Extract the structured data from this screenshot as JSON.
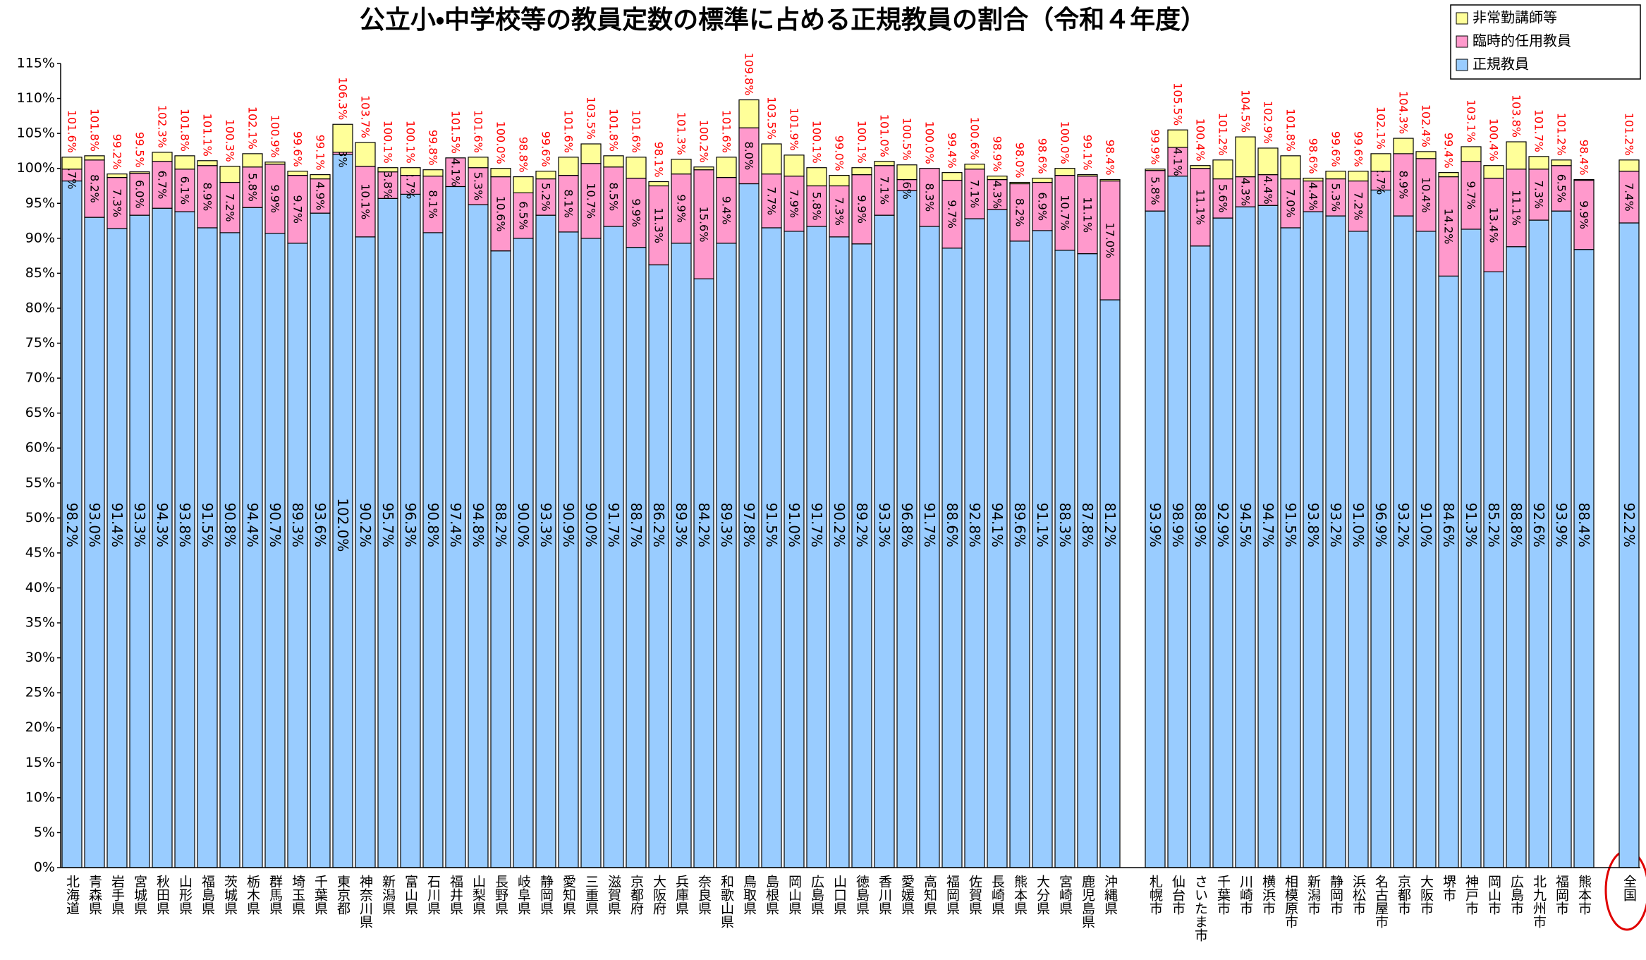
{
  "chart_data": {
    "type": "stacked_bar",
    "title": "公立小・中学校等の教員定数の標準に占める正規教員の割合（令和４年度）",
    "categories": [
      "北海道",
      "青森県",
      "岩手県",
      "宮城県",
      "秋田県",
      "山形県",
      "福島県",
      "茨城県",
      "栃木県",
      "群馬県",
      "埼玉県",
      "千葉県",
      "東京都",
      "神奈川県",
      "新潟県",
      "富山県",
      "石川県",
      "福井県",
      "山梨県",
      "長野県",
      "岐阜県",
      "静岡県",
      "愛知県",
      "三重県",
      "滋賀県",
      "京都府",
      "大阪府",
      "兵庫県",
      "奈良県",
      "和歌山県",
      "鳥取県",
      "島根県",
      "岡山県",
      "広島県",
      "山口県",
      "徳島県",
      "香川県",
      "愛媛県",
      "高知県",
      "福岡県",
      "佐賀県",
      "長崎県",
      "熊本県",
      "大分県",
      "宮崎県",
      "鹿児島県",
      "沖縄県",
      "札幌市",
      "仙台市",
      "さいたま市",
      "千葉市",
      "川崎市",
      "横浜市",
      "相模原市",
      "新潟市",
      "静岡市",
      "浜松市",
      "名古屋市",
      "京都市",
      "大阪市",
      "堺市",
      "神戸市",
      "岡山市",
      "広島市",
      "北九州市",
      "福岡市",
      "熊本市",
      "全国"
    ],
    "series": [
      {
        "name": "正規教員",
        "color": "#99ccff",
        "values": [
          98.2,
          93.0,
          91.4,
          93.3,
          94.3,
          93.8,
          91.5,
          90.8,
          94.4,
          90.7,
          89.3,
          93.6,
          102.0,
          90.2,
          95.7,
          96.3,
          90.8,
          97.4,
          94.8,
          88.2,
          90.0,
          93.3,
          90.9,
          90.0,
          91.7,
          88.7,
          86.2,
          89.3,
          84.2,
          89.3,
          97.8,
          91.5,
          91.0,
          91.7,
          90.2,
          89.2,
          93.3,
          96.8,
          91.7,
          88.6,
          92.8,
          94.1,
          89.6,
          91.1,
          88.3,
          87.8,
          81.2,
          93.9,
          98.9,
          88.9,
          92.9,
          94.5,
          94.7,
          91.5,
          93.8,
          93.2,
          91.0,
          96.9,
          93.2,
          91.0,
          84.6,
          91.3,
          85.2,
          88.8,
          92.6,
          93.9,
          88.4,
          92.2
        ],
        "value_labels": [
          "98.2%",
          "93.0%",
          "91.4%",
          "93.3%",
          "94.3%",
          "93.8%",
          "91.5%",
          "90.8%",
          "94.4%",
          "90.7%",
          "89.3%",
          "93.6%",
          "102.0%",
          "90.2%",
          "95.7%",
          "96.3%",
          "90.8%",
          "97.4%",
          "94.8%",
          "88.2%",
          "90.0%",
          "93.3%",
          "90.9%",
          "90.0%",
          "91.7%",
          "88.7%",
          "86.2%",
          "89.3%",
          "84.2%",
          "89.3%",
          "97.8%",
          "91.5%",
          "91.0%",
          "91.7%",
          "90.2%",
          "89.2%",
          "93.3%",
          "96.8%",
          "91.7%",
          "88.6%",
          "92.8%",
          "94.1%",
          "89.6%",
          "91.1%",
          "88.3%",
          "87.8%",
          "81.2%",
          "93.9%",
          "98.9%",
          "88.9%",
          "92.9%",
          "94.5%",
          "94.7%",
          "91.5%",
          "93.8%",
          "93.2%",
          "91.0%",
          "96.9%",
          "93.2%",
          "91.0%",
          "84.6%",
          "91.3%",
          "85.2%",
          "88.8%",
          "92.6%",
          "93.9%",
          "88.4%",
          "92.2%"
        ]
      },
      {
        "name": "臨時的任用教員",
        "color": "#ff99cc",
        "values": [
          1.7,
          8.2,
          7.3,
          6.0,
          6.7,
          6.1,
          8.9,
          7.2,
          5.8,
          9.9,
          9.7,
          4.9,
          0.3,
          10.1,
          3.8,
          2.7,
          8.1,
          4.1,
          5.3,
          10.6,
          6.5,
          5.2,
          8.1,
          10.7,
          8.5,
          9.9,
          11.3,
          9.9,
          15.6,
          9.4,
          8.0,
          7.7,
          7.9,
          5.8,
          7.3,
          9.9,
          7.1,
          1.6,
          8.3,
          9.7,
          7.1,
          4.3,
          8.2,
          6.9,
          10.7,
          11.1,
          17.0,
          5.8,
          4.1,
          11.1,
          5.6,
          4.3,
          4.4,
          7.0,
          4.4,
          5.3,
          7.2,
          2.7,
          8.9,
          10.4,
          14.2,
          9.7,
          13.4,
          11.1,
          7.3,
          6.5,
          9.9,
          7.4
        ],
        "value_labels": [
          "1.7%",
          "8.2%",
          "7.3%",
          "6.0%",
          "6.7%",
          "6.1%",
          "8.9%",
          "7.2%",
          "5.8%",
          "9.9%",
          "9.7%",
          "4.9%",
          "0.3%",
          "10.1%",
          "3.8%",
          "2.7%",
          "8.1%",
          "4.1%",
          "5.3%",
          "10.6%",
          "6.5%",
          "5.2%",
          "8.1%",
          "10.7%",
          "8.5%",
          "9.9%",
          "11.3%",
          "9.9%",
          "15.6%",
          "9.4%",
          "8.0%",
          "7.7%",
          "7.9%",
          "5.8%",
          "7.3%",
          "9.9%",
          "7.1%",
          "1.6%",
          "8.3%",
          "9.7%",
          "7.1%",
          "4.3%",
          "8.2%",
          "6.9%",
          "10.7%",
          "11.1%",
          "17.0%",
          "5.8%",
          "4.1%",
          "11.1%",
          "5.6%",
          "4.3%",
          "4.4%",
          "7.0%",
          "4.4%",
          "5.3%",
          "7.2%",
          "2.7%",
          "8.9%",
          "10.4%",
          "14.2%",
          "9.7%",
          "13.4%",
          "11.1%",
          "7.3%",
          "6.5%",
          "9.9%",
          "7.4%"
        ]
      },
      {
        "name": "非常勤講師等",
        "color": "#ffff99",
        "values": [
          1.7,
          0.6,
          0.5,
          0.2,
          1.3,
          1.9,
          0.7,
          2.3,
          1.9,
          0.3,
          0.6,
          0.6,
          4.0,
          3.4,
          0.6,
          1.1,
          0.9,
          0,
          1.5,
          1.2,
          2.3,
          1.1,
          2.6,
          2.8,
          1.6,
          3.0,
          0.6,
          2.1,
          0.4,
          2.9,
          4.0,
          4.3,
          3.0,
          2.6,
          1.5,
          1.0,
          0.6,
          2.1,
          0,
          1.1,
          0.7,
          0.5,
          0.2,
          0.6,
          1.0,
          0.2,
          0.2,
          0.2,
          2.5,
          0.4,
          2.7,
          5.7,
          3.8,
          3.3,
          0.4,
          1.1,
          1.4,
          2.5,
          2.2,
          1.0,
          0.6,
          2.1,
          1.8,
          3.9,
          1.8,
          0.8,
          0.1,
          1.6
        ]
      }
    ],
    "totals": [
      101.6,
      101.8,
      99.2,
      99.5,
      102.3,
      101.8,
      101.1,
      100.3,
      102.1,
      100.9,
      99.6,
      99.1,
      106.3,
      103.7,
      100.1,
      100.1,
      99.8,
      101.5,
      101.6,
      100.0,
      98.8,
      99.6,
      101.6,
      103.5,
      101.8,
      101.6,
      98.1,
      101.3,
      100.2,
      101.6,
      109.8,
      103.5,
      101.9,
      100.1,
      99.0,
      100.1,
      101.0,
      100.5,
      100.0,
      99.4,
      100.6,
      98.9,
      98.0,
      98.6,
      100.0,
      99.1,
      98.4,
      99.9,
      105.5,
      100.4,
      101.2,
      104.5,
      102.9,
      101.8,
      98.6,
      99.6,
      99.6,
      102.1,
      104.3,
      102.4,
      99.4,
      103.1,
      100.4,
      103.8,
      101.7,
      101.2,
      98.4,
      101.2
    ],
    "total_labels": [
      "101.6%",
      "101.8%",
      "99.2%",
      "99.5%",
      "102.3%",
      "101.8%",
      "101.1%",
      "100.3%",
      "102.1%",
      "100.9%",
      "99.6%",
      "99.1%",
      "106.3%",
      "103.7%",
      "100.1%",
      "100.1%",
      "99.8%",
      "101.5%",
      "101.6%",
      "100.0%",
      "98.8%",
      "99.6%",
      "101.6%",
      "103.5%",
      "101.8%",
      "101.6%",
      "98.1%",
      "101.3%",
      "100.2%",
      "101.6%",
      "109.8%",
      "103.5%",
      "101.9%",
      "100.1%",
      "99.0%",
      "100.1%",
      "101.0%",
      "100.5%",
      "100.0%",
      "99.4%",
      "100.6%",
      "98.9%",
      "98.0%",
      "98.6%",
      "100.0%",
      "99.1%",
      "98.4%",
      "99.9%",
      "105.5%",
      "100.4%",
      "101.2%",
      "104.5%",
      "102.9%",
      "101.8%",
      "98.6%",
      "99.6%",
      "99.6%",
      "102.1%",
      "104.3%",
      "102.4%",
      "99.4%",
      "103.1%",
      "100.4%",
      "103.8%",
      "101.7%",
      "101.2%",
      "98.4%",
      "101.2%"
    ],
    "ylim": [
      0,
      115
    ],
    "yticks": [
      {
        "value": 0,
        "label": "0%"
      },
      {
        "value": 5,
        "label": "5%"
      },
      {
        "value": 10,
        "label": "10%"
      },
      {
        "value": 15,
        "label": "15%"
      },
      {
        "value": 20,
        "label": "20%"
      },
      {
        "value": 25,
        "label": "25%"
      },
      {
        "value": 30,
        "label": "30%"
      },
      {
        "value": 35,
        "label": "35%"
      },
      {
        "value": 40,
        "label": "40%"
      },
      {
        "value": 45,
        "label": "45%"
      },
      {
        "value": 50,
        "label": "50%"
      },
      {
        "value": 55,
        "label": "55%"
      },
      {
        "value": 60,
        "label": "60%"
      },
      {
        "value": 65,
        "label": "65%"
      },
      {
        "value": 70,
        "label": "70%"
      },
      {
        "value": 75,
        "label": "75%"
      },
      {
        "value": 80,
        "label": "80%"
      },
      {
        "value": 85,
        "label": "85%"
      },
      {
        "value": 90,
        "label": "90%"
      },
      {
        "value": 95,
        "label": "95%"
      },
      {
        "value": 100,
        "label": "100%"
      },
      {
        "value": 105,
        "label": "105%"
      },
      {
        "value": 110,
        "label": "110%"
      },
      {
        "value": 115,
        "label": "115%"
      }
    ],
    "grid": false,
    "legend": "upper right"
  }
}
